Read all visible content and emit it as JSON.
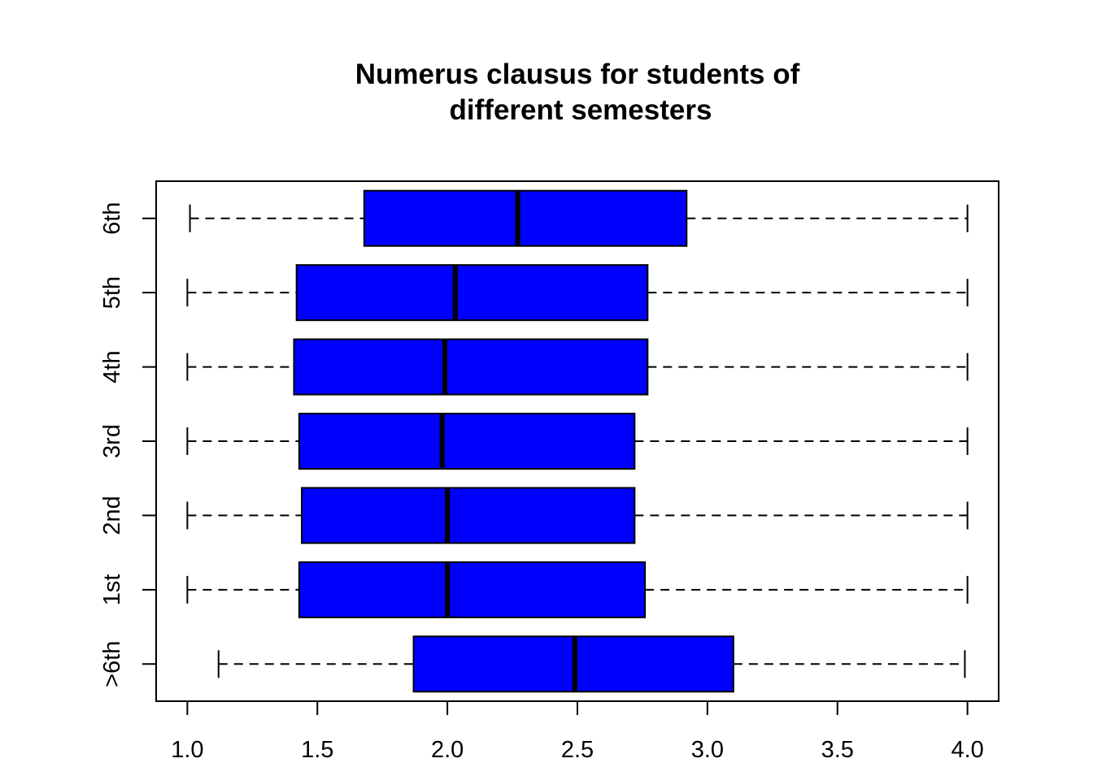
{
  "chart_data": {
    "type": "boxplot",
    "orientation": "horizontal",
    "title_lines": [
      "Numerus clausus for students of",
      "different semesters"
    ],
    "xlim": [
      0.88,
      4.12
    ],
    "x_ticks": [
      1.0,
      1.5,
      2.0,
      2.5,
      3.0,
      3.5,
      4.0
    ],
    "x_tick_labels": [
      "1.0",
      "1.5",
      "2.0",
      "2.5",
      "3.0",
      "3.5",
      "4.0"
    ],
    "categories": [
      ">6th",
      "1st",
      "2nd",
      "3rd",
      "4th",
      "5th",
      "6th"
    ],
    "box_color": "#0000ff",
    "boxes": [
      {
        "group": ">6th",
        "whisker_low": 1.12,
        "q1": 1.87,
        "median": 2.49,
        "q3": 3.1,
        "whisker_high": 3.99
      },
      {
        "group": "1st",
        "whisker_low": 1.0,
        "q1": 1.43,
        "median": 2.0,
        "q3": 2.76,
        "whisker_high": 4.0
      },
      {
        "group": "2nd",
        "whisker_low": 1.0,
        "q1": 1.44,
        "median": 2.0,
        "q3": 2.72,
        "whisker_high": 4.0
      },
      {
        "group": "3rd",
        "whisker_low": 1.0,
        "q1": 1.43,
        "median": 1.98,
        "q3": 2.72,
        "whisker_high": 4.0
      },
      {
        "group": "4th",
        "whisker_low": 1.0,
        "q1": 1.41,
        "median": 1.99,
        "q3": 2.77,
        "whisker_high": 4.0
      },
      {
        "group": "5th",
        "whisker_low": 1.0,
        "q1": 1.42,
        "median": 2.03,
        "q3": 2.77,
        "whisker_high": 4.0
      },
      {
        "group": "6th",
        "whisker_low": 1.01,
        "q1": 1.68,
        "median": 2.27,
        "q3": 2.92,
        "whisker_high": 4.0
      }
    ]
  }
}
